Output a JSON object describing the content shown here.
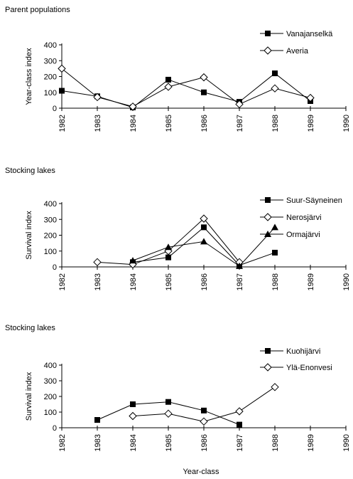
{
  "chart_data": [
    {
      "type": "line",
      "title": "Parent populations",
      "xlabel": "",
      "ylabel": "Year-class index",
      "ylim": [
        0,
        400
      ],
      "yticks": [
        0,
        100,
        200,
        300,
        400
      ],
      "xticks": [
        "1982",
        "1983",
        "1984",
        "1985",
        "1986",
        "1987",
        "1988",
        "1989",
        "1990"
      ],
      "grid": false,
      "legend": "top-right",
      "series": [
        {
          "name": "Vanajanselkä",
          "marker": "filled-square",
          "points": [
            [
              1982,
              110
            ],
            [
              1983,
              75
            ],
            [
              1984,
              5
            ],
            [
              1985,
              180
            ],
            [
              1986,
              100
            ],
            [
              1987,
              40
            ],
            [
              1988,
              220
            ],
            [
              1989,
              45
            ]
          ]
        },
        {
          "name": "Averia",
          "marker": "open-diamond",
          "points": [
            [
              1982,
              250
            ],
            [
              1983,
              70
            ],
            [
              1984,
              10
            ],
            [
              1985,
              135
            ],
            [
              1986,
              195
            ],
            [
              1987,
              25
            ],
            [
              1988,
              125
            ],
            [
              1989,
              65
            ]
          ]
        }
      ]
    },
    {
      "type": "line",
      "title": "Stocking lakes",
      "xlabel": "",
      "ylabel": "Survival index",
      "ylim": [
        0,
        400
      ],
      "yticks": [
        0,
        100,
        200,
        300,
        400
      ],
      "xticks": [
        "1982",
        "1983",
        "1984",
        "1985",
        "1986",
        "1987",
        "1988",
        "1989",
        "1990"
      ],
      "grid": false,
      "legend": "top-right",
      "series": [
        {
          "name": "Suur-Säyneinen",
          "marker": "filled-square",
          "points": [
            [
              1984,
              30
            ],
            [
              1985,
              60
            ],
            [
              1986,
              250
            ],
            [
              1987,
              10
            ],
            [
              1988,
              90
            ]
          ]
        },
        {
          "name": "Nerosjärvi",
          "marker": "open-diamond",
          "points": [
            [
              1983,
              30
            ],
            [
              1984,
              15
            ],
            [
              1985,
              100
            ],
            [
              1986,
              305
            ],
            [
              1987,
              30
            ]
          ]
        },
        {
          "name": "Ormajärvi",
          "marker": "filled-triangle",
          "points": [
            [
              1984,
              40
            ],
            [
              1985,
              125
            ],
            [
              1986,
              160
            ],
            [
              1987,
              5
            ],
            [
              1988,
              250
            ]
          ]
        }
      ]
    },
    {
      "type": "line",
      "title": "Stocking lakes",
      "xlabel": "Year-class",
      "ylabel": "Survival index",
      "ylim": [
        0,
        400
      ],
      "yticks": [
        0,
        100,
        200,
        300,
        400
      ],
      "xticks": [
        "1982",
        "1983",
        "1984",
        "1985",
        "1986",
        "1987",
        "1988",
        "1989",
        "1990"
      ],
      "grid": false,
      "legend": "top-right",
      "series": [
        {
          "name": "Kuohijärvi",
          "marker": "filled-square",
          "points": [
            [
              1983,
              50
            ],
            [
              1984,
              150
            ],
            [
              1985,
              165
            ],
            [
              1986,
              110
            ],
            [
              1987,
              20
            ]
          ]
        },
        {
          "name": "Ylä-Enonvesi",
          "marker": "open-diamond",
          "points": [
            [
              1984,
              75
            ],
            [
              1985,
              90
            ],
            [
              1986,
              40
            ],
            [
              1987,
              105
            ],
            [
              1988,
              260
            ]
          ]
        }
      ]
    }
  ]
}
